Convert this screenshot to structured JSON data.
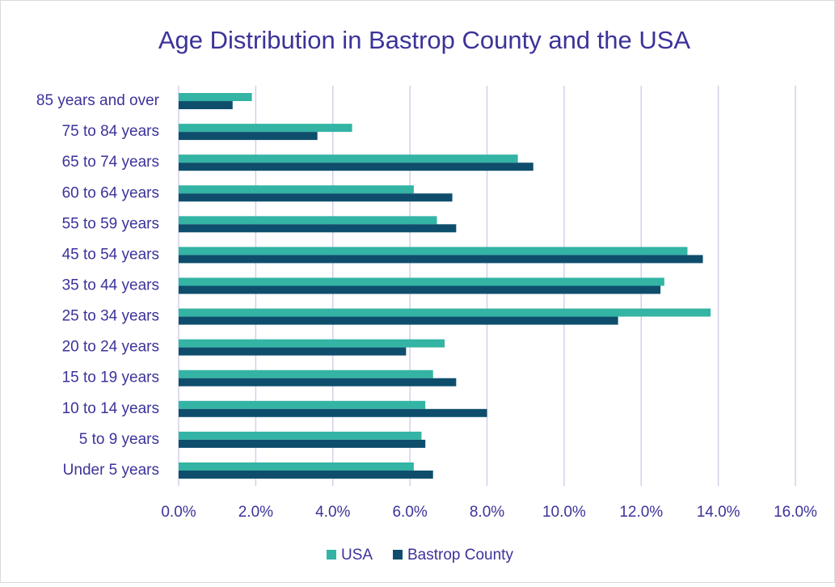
{
  "chart_data": {
    "type": "hbar",
    "title": "Age Distribution in Bastrop County and the USA",
    "categories": [
      "Under 5 years",
      "5 to 9 years",
      "10 to 14 years",
      "15 to 19 years",
      "20 to 24 years",
      "25 to 34 years",
      "35 to 44 years",
      "45 to 54 years",
      "55 to 59 years",
      "60 to 64 years",
      "65 to 74 years",
      "75 to 84 years",
      "85 years and over"
    ],
    "series": [
      {
        "name": "USA",
        "color": "#33b4a4",
        "values": [
          6.1,
          6.3,
          6.4,
          6.6,
          6.9,
          13.8,
          12.6,
          13.2,
          6.7,
          6.1,
          8.8,
          4.5,
          1.9
        ]
      },
      {
        "name": "Bastrop County",
        "color": "#0e4e6c",
        "values": [
          6.6,
          6.4,
          8.0,
          7.2,
          5.9,
          11.4,
          12.5,
          13.6,
          7.2,
          7.1,
          9.2,
          3.6,
          1.4
        ]
      }
    ],
    "xlim": [
      0,
      16
    ],
    "xticks": [
      {
        "value": 0,
        "label": "0.0%"
      },
      {
        "value": 2,
        "label": "2.0%"
      },
      {
        "value": 4,
        "label": "4.0%"
      },
      {
        "value": 6,
        "label": "6.0%"
      },
      {
        "value": 8,
        "label": "8.0%"
      },
      {
        "value": 10,
        "label": "10.0%"
      },
      {
        "value": 12,
        "label": "12.0%"
      },
      {
        "value": 14,
        "label": "14.0%"
      },
      {
        "value": 16,
        "label": "16.0%"
      }
    ],
    "grid": true,
    "legend": "bottom"
  }
}
